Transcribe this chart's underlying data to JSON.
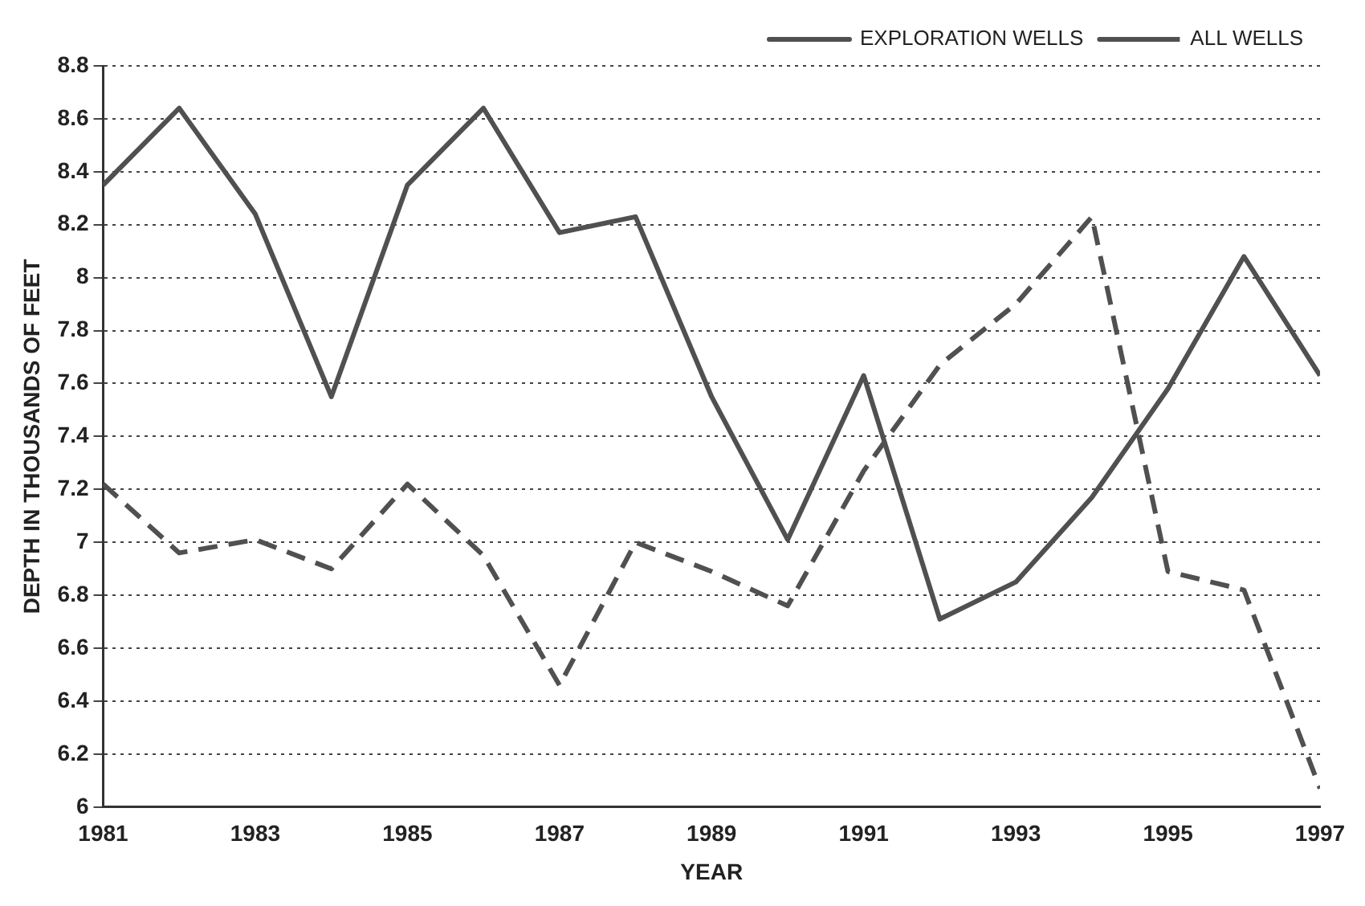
{
  "chart_data": {
    "type": "line",
    "xlabel": "YEAR",
    "ylabel": "DEPTH IN THOUSANDS OF FEET",
    "x": [
      1981,
      1982,
      1983,
      1984,
      1985,
      1986,
      1987,
      1988,
      1989,
      1990,
      1991,
      1992,
      1993,
      1994,
      1995,
      1996,
      1997
    ],
    "series": [
      {
        "name": "EXPLORATION WELLS",
        "color": "#505050",
        "line_style": "solid",
        "values": [
          8.35,
          8.64,
          8.24,
          7.55,
          8.35,
          8.64,
          8.17,
          8.23,
          7.55,
          7.01,
          7.63,
          6.71,
          6.85,
          7.17,
          7.58,
          8.08,
          7.63
        ]
      },
      {
        "name": "ALL WELLS",
        "color": "#505050",
        "line_style": "dashed",
        "values": [
          7.22,
          6.96,
          7.01,
          6.9,
          7.22,
          6.95,
          6.46,
          7.0,
          6.89,
          6.76,
          7.27,
          7.67,
          7.9,
          8.23,
          6.89,
          6.82,
          6.07
        ]
      }
    ],
    "xlim": [
      1981,
      1997
    ],
    "xticks": [
      1981,
      1983,
      1985,
      1987,
      1989,
      1991,
      1993,
      1995,
      1997
    ],
    "ylim": [
      6,
      8.8
    ],
    "yticks": [
      6,
      6.2,
      6.4,
      6.6,
      6.8,
      7,
      7.2,
      7.4,
      7.6,
      7.8,
      8,
      8.2,
      8.4,
      8.6,
      8.8
    ],
    "grid": "y",
    "legend": "top right",
    "marker": "none"
  }
}
